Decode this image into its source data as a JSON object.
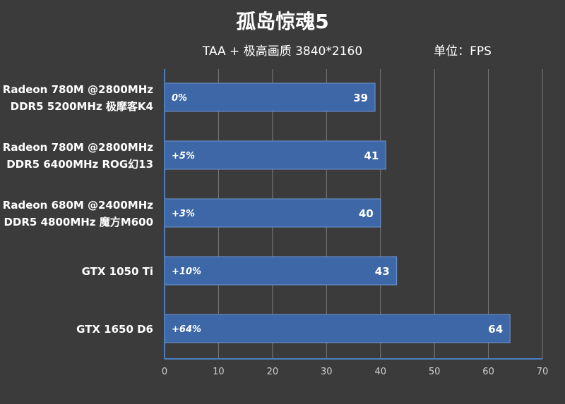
{
  "chart_data": {
    "type": "bar",
    "orientation": "horizontal",
    "title": "孤岛惊魂5",
    "subtitle": "TAA + 极高画质 3840*2160",
    "unit_label": "单位：FPS",
    "categories": [
      [
        "Radeon 780M @2800MHz",
        "DDR5 5200MHz 极摩客K4"
      ],
      [
        "Radeon 780M @2800MHz",
        "DDR5 6400MHz ROG幻13"
      ],
      [
        "Radeon 680M @2400MHz",
        "DDR5 4800MHz 魔方M600"
      ],
      [
        "GTX 1050 Ti"
      ],
      [
        "GTX 1650 D6"
      ]
    ],
    "values": [
      39,
      41,
      40,
      43,
      64
    ],
    "percent_labels": [
      "0%",
      "+5%",
      "+3%",
      "+10%",
      "+64%"
    ],
    "xlim": [
      0,
      70
    ],
    "xticks": [
      0,
      10,
      20,
      30,
      40,
      50,
      60,
      70
    ],
    "grid": true,
    "colors": {
      "background": "#3b3b3b",
      "bar_fill": "#3d67a6",
      "bar_stroke": "#6f95cf",
      "grid": "#7a7a7a",
      "axis": "#4a7fc0",
      "text": "#ffffff",
      "tick_text": "#d0d0d0"
    }
  }
}
